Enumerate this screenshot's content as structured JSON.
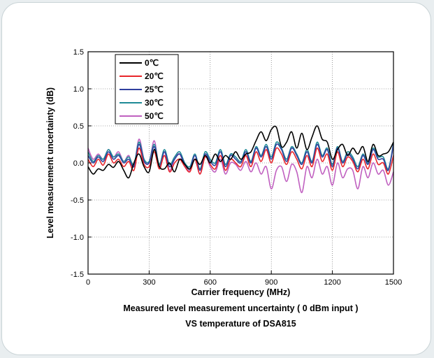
{
  "chart_data": {
    "type": "line",
    "xlabel": "Carrier frequency (MHz)",
    "ylabel": "Level measurement uncertainty (dB)",
    "caption": [
      "Measured level measurement uncertainty ( 0 dBm input )",
      "VS temperature of DSA815"
    ],
    "xlim": [
      0,
      1500
    ],
    "ylim": [
      -1.5,
      1.5
    ],
    "xticks": [
      "0",
      "300",
      "600",
      "900",
      "1200",
      "1500"
    ],
    "yticks": [
      "1.5",
      "1.0",
      "0.5",
      "0.0",
      "-0.5",
      "-1.0",
      "-1.5"
    ],
    "grid": true,
    "legend_position": "top-left",
    "x": [
      0,
      25,
      50,
      75,
      100,
      125,
      150,
      175,
      200,
      225,
      250,
      275,
      300,
      325,
      350,
      375,
      400,
      425,
      450,
      475,
      500,
      525,
      550,
      575,
      600,
      625,
      650,
      675,
      700,
      725,
      750,
      775,
      800,
      825,
      850,
      875,
      900,
      925,
      950,
      975,
      1000,
      1025,
      1050,
      1075,
      1100,
      1125,
      1150,
      1175,
      1200,
      1225,
      1250,
      1275,
      1300,
      1325,
      1350,
      1375,
      1400,
      1425,
      1450,
      1475,
      1500
    ],
    "series": [
      {
        "name": "0℃",
        "color": "#000000",
        "values": [
          -0.05,
          -0.15,
          -0.08,
          -0.1,
          -0.02,
          -0.06,
          0.02,
          -0.1,
          -0.2,
          0.0,
          0.12,
          -0.05,
          -0.12,
          0.18,
          -0.05,
          -0.08,
          0.0,
          -0.12,
          0.05,
          -0.02,
          -0.08,
          0.05,
          -0.02,
          0.1,
          0.0,
          0.12,
          0.02,
          0.1,
          0.05,
          0.15,
          0.05,
          0.12,
          0.15,
          0.3,
          0.42,
          0.3,
          0.45,
          0.48,
          0.22,
          0.28,
          0.42,
          0.2,
          0.4,
          0.18,
          0.35,
          0.5,
          0.32,
          0.28,
          0.05,
          0.18,
          0.25,
          0.1,
          0.2,
          0.12,
          0.22,
          0.02,
          0.25,
          0.1,
          0.12,
          0.15,
          0.28
        ]
      },
      {
        "name": "20℃",
        "color": "#e8262b",
        "values": [
          0.05,
          -0.05,
          0.05,
          -0.03,
          0.12,
          0.0,
          0.05,
          -0.05,
          0.02,
          -0.1,
          0.2,
          -0.02,
          -0.05,
          0.15,
          -0.08,
          0.1,
          -0.12,
          0.0,
          0.05,
          -0.05,
          -0.12,
          0.05,
          -0.15,
          0.08,
          -0.02,
          -0.08,
          0.1,
          -0.1,
          0.05,
          0.0,
          -0.05,
          0.1,
          -0.05,
          0.15,
          0.02,
          0.18,
          0.0,
          0.2,
          0.12,
          -0.02,
          0.15,
          0.05,
          -0.08,
          0.1,
          -0.05,
          0.2,
          0.02,
          0.12,
          -0.1,
          0.15,
          -0.05,
          0.08,
          0.02,
          -0.12,
          0.05,
          -0.08,
          0.12,
          -0.02,
          0.0,
          -0.15,
          0.1
        ]
      },
      {
        "name": "25℃",
        "color": "#2f3f9e",
        "values": [
          0.1,
          0.0,
          0.08,
          0.02,
          0.15,
          0.05,
          0.1,
          0.0,
          0.05,
          -0.05,
          0.25,
          0.02,
          0.0,
          0.22,
          -0.05,
          0.15,
          -0.05,
          0.05,
          0.12,
          -0.02,
          -0.08,
          0.1,
          -0.1,
          0.12,
          0.02,
          -0.03,
          0.15,
          -0.05,
          0.1,
          0.05,
          0.0,
          0.15,
          0.0,
          0.2,
          0.08,
          0.22,
          0.05,
          0.25,
          0.18,
          0.02,
          0.2,
          0.1,
          -0.02,
          0.15,
          0.0,
          0.25,
          0.08,
          0.18,
          -0.05,
          0.2,
          0.0,
          0.12,
          0.05,
          -0.08,
          0.1,
          -0.02,
          0.18,
          0.05,
          0.05,
          -0.1,
          0.25
        ]
      },
      {
        "name": "30℃",
        "color": "#1e8a96",
        "values": [
          0.15,
          0.02,
          0.1,
          0.05,
          0.18,
          0.08,
          0.12,
          0.02,
          0.08,
          -0.02,
          0.28,
          0.05,
          0.02,
          0.25,
          -0.02,
          0.18,
          -0.02,
          0.08,
          0.15,
          0.0,
          -0.05,
          0.12,
          -0.08,
          0.15,
          0.05,
          0.0,
          0.18,
          -0.02,
          0.12,
          0.08,
          0.02,
          0.18,
          0.02,
          0.22,
          0.1,
          0.25,
          0.08,
          0.28,
          0.2,
          0.05,
          0.22,
          0.12,
          0.0,
          0.18,
          0.02,
          0.28,
          0.1,
          0.2,
          -0.02,
          0.22,
          0.02,
          0.15,
          0.08,
          -0.05,
          0.12,
          0.0,
          0.2,
          0.08,
          0.08,
          -0.08,
          0.27
        ]
      },
      {
        "name": "50℃",
        "color": "#c060c0",
        "values": [
          0.2,
          0.05,
          0.12,
          0.05,
          0.18,
          0.08,
          0.15,
          0.02,
          0.1,
          -0.05,
          0.32,
          0.05,
          0.0,
          0.3,
          -0.05,
          0.15,
          -0.1,
          0.05,
          0.12,
          -0.05,
          -0.1,
          0.05,
          -0.15,
          0.1,
          -0.05,
          -0.12,
          0.05,
          -0.15,
          0.0,
          -0.02,
          -0.1,
          0.02,
          -0.12,
          0.0,
          -0.15,
          -0.05,
          -0.35,
          -0.1,
          -0.05,
          -0.25,
          -0.02,
          -0.12,
          -0.4,
          -0.05,
          -0.2,
          0.05,
          -0.15,
          -0.05,
          -0.3,
          0.0,
          -0.2,
          -0.08,
          -0.1,
          -0.35,
          -0.05,
          -0.2,
          0.0,
          -0.15,
          -0.1,
          -0.3,
          -0.12
        ]
      }
    ]
  }
}
